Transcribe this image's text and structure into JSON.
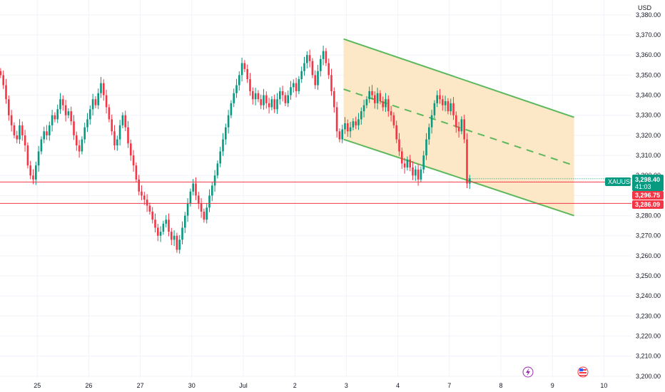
{
  "chart_data": {
    "type": "candlestick",
    "currency": "USD",
    "symbol": "XAUUSD",
    "ylim": [
      3195,
      3386
    ],
    "y_ticks": [
      3200,
      3210,
      3220,
      3230,
      3240,
      3250,
      3260,
      3270,
      3280,
      3290,
      3300,
      3310,
      3320,
      3330,
      3340,
      3350,
      3360,
      3370,
      3380
    ],
    "y_tick_labels": [
      "3,200.00",
      "3,210.00",
      "3,220.00",
      "3,230.00",
      "3,240.00",
      "3,250.00",
      "3,260.00",
      "3,270.00",
      "3,280.00",
      "3,290.00",
      "3,300.00",
      "3,310.00",
      "3,320.00",
      "3,330.00",
      "3,340.00",
      "3,350.00",
      "3,360.00",
      "3,370.00",
      "3,380.00"
    ],
    "x_labels": [
      "25",
      "26",
      "27",
      "30",
      "Jul",
      "2",
      "3",
      "4",
      "7",
      "8",
      "9",
      "10"
    ],
    "x_label_slots": [
      14,
      33,
      52,
      71,
      90,
      109,
      128,
      147,
      166,
      185,
      204,
      223
    ],
    "total_slots": 250,
    "closes": [
      3350,
      3345,
      3338,
      3330,
      3325,
      3320,
      3318,
      3325,
      3320,
      3315,
      3305,
      3300,
      3298,
      3305,
      3312,
      3318,
      3322,
      3320,
      3325,
      3330,
      3328,
      3333,
      3338,
      3335,
      3330,
      3332,
      3327,
      3320,
      3315,
      3312,
      3318,
      3324,
      3328,
      3333,
      3338,
      3335,
      3341,
      3346,
      3340,
      3334,
      3328,
      3322,
      3315,
      3318,
      3325,
      3330,
      3324,
      3316,
      3310,
      3305,
      3298,
      3292,
      3290,
      3288,
      3285,
      3282,
      3278,
      3274,
      3270,
      3272,
      3276,
      3278,
      3272,
      3268,
      3270,
      3263,
      3268,
      3274,
      3280,
      3286,
      3292,
      3296,
      3290,
      3286,
      3282,
      3278,
      3284,
      3290,
      3295,
      3300,
      3306,
      3312,
      3318,
      3324,
      3330,
      3336,
      3341,
      3345,
      3350,
      3356,
      3353,
      3348,
      3342,
      3338,
      3341,
      3338,
      3335,
      3340,
      3336,
      3334,
      3338,
      3333,
      3338,
      3342,
      3340,
      3336,
      3340,
      3344,
      3346,
      3342,
      3348,
      3352,
      3356,
      3360,
      3357,
      3350,
      3345,
      3352,
      3358,
      3362,
      3356,
      3350,
      3342,
      3334,
      3322,
      3318,
      3323,
      3326,
      3322,
      3324,
      3327,
      3325,
      3328,
      3332,
      3335,
      3338,
      3342,
      3340,
      3336,
      3341,
      3337,
      3334,
      3338,
      3332,
      3330,
      3325,
      3318,
      3312,
      3306,
      3304,
      3308,
      3304,
      3300,
      3303,
      3298,
      3303,
      3310,
      3318,
      3324,
      3330,
      3336,
      3340,
      3338,
      3335,
      3337,
      3332,
      3336,
      3330,
      3324,
      3322,
      3328,
      3318,
      3296,
      3298.4
    ],
    "last_price": "3,298.40",
    "last_price_time": "41:03",
    "price_labels": [
      "3,296.75",
      "3,286.09"
    ],
    "horizontal_lines": [
      3296.75,
      3286.09
    ],
    "channel": {
      "start_slot": 127,
      "end_slot": 212,
      "upper": [
        3368,
        3329
      ],
      "middle": [
        3343,
        3305
      ],
      "lower": [
        3318,
        3280
      ]
    },
    "colors": {
      "up": "#089981",
      "down": "#f23645",
      "channel_fill": "#fce4c0",
      "channel_line": "#5cb85c",
      "grid": "#f0f3fa",
      "axis_text": "#131722"
    },
    "events": [
      {
        "slot": 197,
        "icon": "lightning-icon"
      },
      {
        "slot": 218,
        "icon": "us-flag-icon"
      }
    ]
  }
}
